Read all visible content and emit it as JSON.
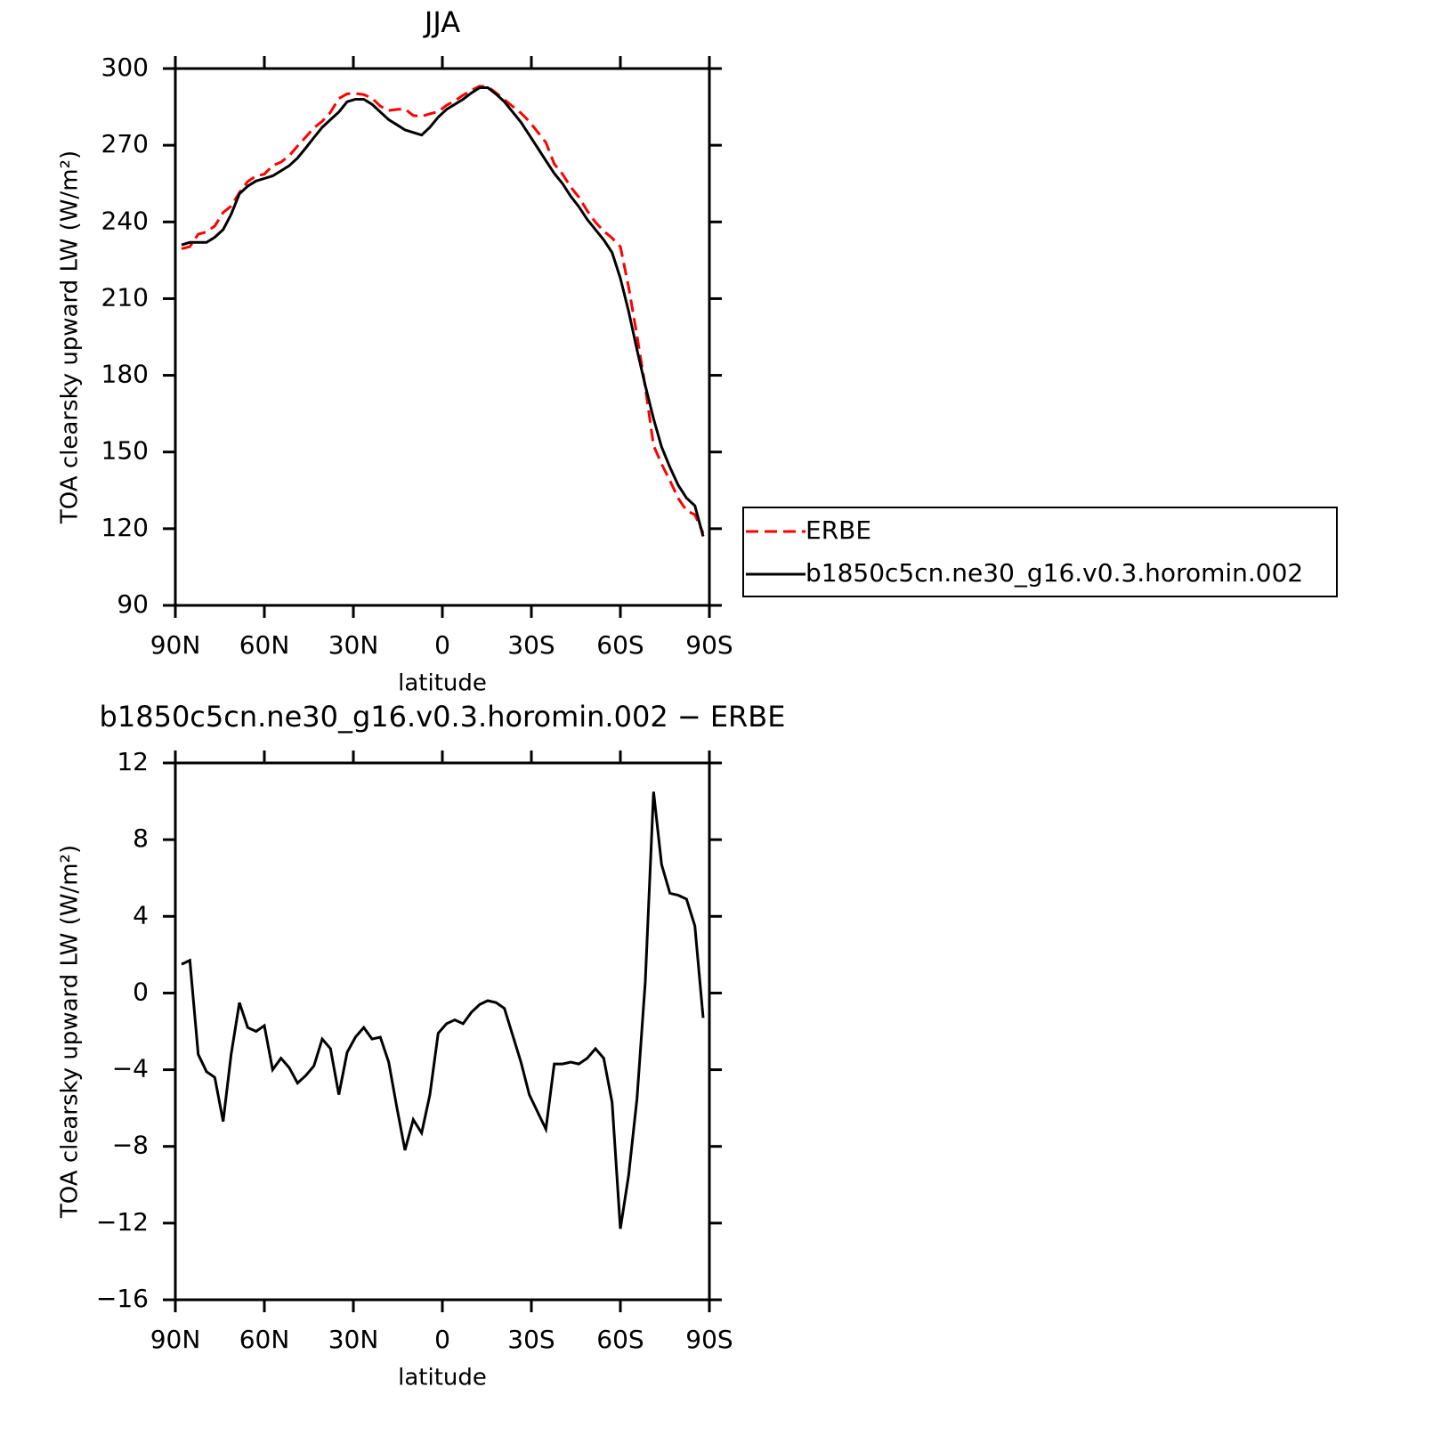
{
  "chart_data": [
    {
      "type": "line",
      "title": "JJA",
      "xlabel": "latitude",
      "ylabel": "TOA clearsky upward LW (W/m²)",
      "x": [
        87.9,
        85.1,
        82.3,
        79.5,
        76.7,
        73.9,
        71.2,
        68.4,
        65.6,
        62.8,
        60.0,
        57.2,
        54.4,
        51.6,
        48.8,
        46.0,
        43.3,
        40.5,
        37.7,
        34.9,
        32.1,
        29.3,
        26.5,
        23.7,
        20.9,
        18.1,
        15.3,
        12.6,
        9.8,
        7.0,
        4.2,
        1.4,
        -1.4,
        -4.2,
        -7.0,
        -9.8,
        -12.6,
        -15.3,
        -18.1,
        -20.9,
        -23.7,
        -26.5,
        -29.3,
        -32.1,
        -34.9,
        -37.7,
        -40.5,
        -43.3,
        -46.0,
        -48.8,
        -51.6,
        -54.4,
        -57.2,
        -60.0,
        -62.8,
        -65.6,
        -68.4,
        -71.2,
        -73.9,
        -76.7,
        -79.5,
        -82.3,
        -85.1,
        -87.9
      ],
      "series": [
        {
          "name": "ERBE",
          "color": "#ff0000",
          "line_style": "dashed",
          "values": [
            229.5,
            230.3,
            235.2,
            236.1,
            238.4,
            243.7,
            246.2,
            251.5,
            255.8,
            258.0,
            258.7,
            262.0,
            263.4,
            265.9,
            269.7,
            273.3,
            276.8,
            279.4,
            282.9,
            288.3,
            290.1,
            290.3,
            289.8,
            288.4,
            285.3,
            283.6,
            284.0,
            284.2,
            281.6,
            281.3,
            282.3,
            283.1,
            285.6,
            287.4,
            289.6,
            291.5,
            293.1,
            292.9,
            290.5,
            287.8,
            285.2,
            282.6,
            279.3,
            275.2,
            271.1,
            262.7,
            258.7,
            253.6,
            249.7,
            244.4,
            239.9,
            236.4,
            233.7,
            230.3,
            214.5,
            195.5,
            175.4,
            152.5,
            145.3,
            138.8,
            131.9,
            127.1,
            125.5,
            118.3
          ]
        },
        {
          "name": "b1850c5cn.ne30_g16.v0.3.horomin.002",
          "color": "#000000",
          "line_style": "solid",
          "values": [
            231,
            232,
            232,
            232,
            234,
            237,
            243,
            251,
            254,
            256,
            257,
            258,
            260,
            262,
            265,
            269,
            273,
            277,
            280,
            283,
            287,
            288,
            288,
            286,
            283,
            280,
            278,
            276,
            275,
            274,
            277,
            281,
            284,
            286,
            288,
            290.5,
            292.5,
            292.5,
            290,
            287,
            283,
            279,
            274,
            269,
            264,
            259,
            255,
            250,
            246,
            241,
            237,
            233,
            228,
            218,
            205,
            190,
            176,
            163,
            152,
            144,
            137,
            132,
            129,
            117
          ]
        }
      ],
      "xlim": [
        90,
        -90
      ],
      "xticks": [
        {
          "value": 90,
          "label": "90N"
        },
        {
          "value": 60,
          "label": "60N"
        },
        {
          "value": 30,
          "label": "30N"
        },
        0,
        {
          "value": -30,
          "label": "30S"
        },
        {
          "value": -60,
          "label": "60S"
        },
        {
          "value": -90,
          "label": "90S"
        }
      ],
      "ylim": [
        90,
        300
      ],
      "yticks": [
        90,
        120,
        150,
        180,
        210,
        240,
        270,
        300
      ],
      "legend": "right"
    },
    {
      "type": "line",
      "title": "b1850c5cn.ne30_g16.v0.3.horomin.002 − ERBE",
      "xlabel": "latitude",
      "ylabel": "TOA clearsky upward LW (W/m²)",
      "x": [
        87.9,
        85.1,
        82.3,
        79.5,
        76.7,
        73.9,
        71.2,
        68.4,
        65.6,
        62.8,
        60.0,
        57.2,
        54.4,
        51.6,
        48.8,
        46.0,
        43.3,
        40.5,
        37.7,
        34.9,
        32.1,
        29.3,
        26.5,
        23.7,
        20.9,
        18.1,
        15.3,
        12.6,
        9.8,
        7.0,
        4.2,
        1.4,
        -1.4,
        -4.2,
        -7.0,
        -9.8,
        -12.6,
        -15.3,
        -18.1,
        -20.9,
        -23.7,
        -26.5,
        -29.3,
        -32.1,
        -34.9,
        -37.7,
        -40.5,
        -43.3,
        -46.0,
        -48.8,
        -51.6,
        -54.4,
        -57.2,
        -60.0,
        -62.8,
        -65.6,
        -68.4,
        -71.2,
        -73.9,
        -76.7,
        -79.5,
        -82.3,
        -85.1,
        -87.9
      ],
      "values": [
        1.5,
        1.7,
        -3.2,
        -4.1,
        -4.4,
        -6.7,
        -3.2,
        -0.5,
        -1.8,
        -2.0,
        -1.7,
        -4.0,
        -3.4,
        -3.9,
        -4.7,
        -4.3,
        -3.8,
        -2.4,
        -2.9,
        -5.3,
        -3.1,
        -2.3,
        -1.8,
        -2.4,
        -2.3,
        -3.6,
        -6.0,
        -8.2,
        -6.6,
        -7.3,
        -5.3,
        -2.1,
        -1.6,
        -1.4,
        -1.6,
        -1.0,
        -0.6,
        -0.4,
        -0.5,
        -0.8,
        -2.2,
        -3.6,
        -5.3,
        -6.2,
        -7.1,
        -3.7,
        -3.7,
        -3.6,
        -3.7,
        -3.4,
        -2.9,
        -3.4,
        -5.7,
        -12.3,
        -9.5,
        -5.5,
        0.6,
        10.5,
        6.7,
        5.2,
        5.1,
        4.9,
        3.5,
        -1.3
      ],
      "color": "#000000",
      "xlim": [
        90,
        -90
      ],
      "xticks": [
        {
          "value": 90,
          "label": "90N"
        },
        {
          "value": 60,
          "label": "60N"
        },
        {
          "value": 30,
          "label": "30N"
        },
        0,
        {
          "value": -30,
          "label": "30S"
        },
        {
          "value": -60,
          "label": "60S"
        },
        {
          "value": -90,
          "label": "90S"
        }
      ],
      "ylim": [
        -16,
        12
      ],
      "yticks": [
        {
          "value": -16,
          "label": "−16"
        },
        {
          "value": -12,
          "label": "−12"
        },
        {
          "value": -8,
          "label": "−8"
        },
        {
          "value": -4,
          "label": "−4"
        },
        0,
        4,
        8,
        12
      ]
    }
  ]
}
